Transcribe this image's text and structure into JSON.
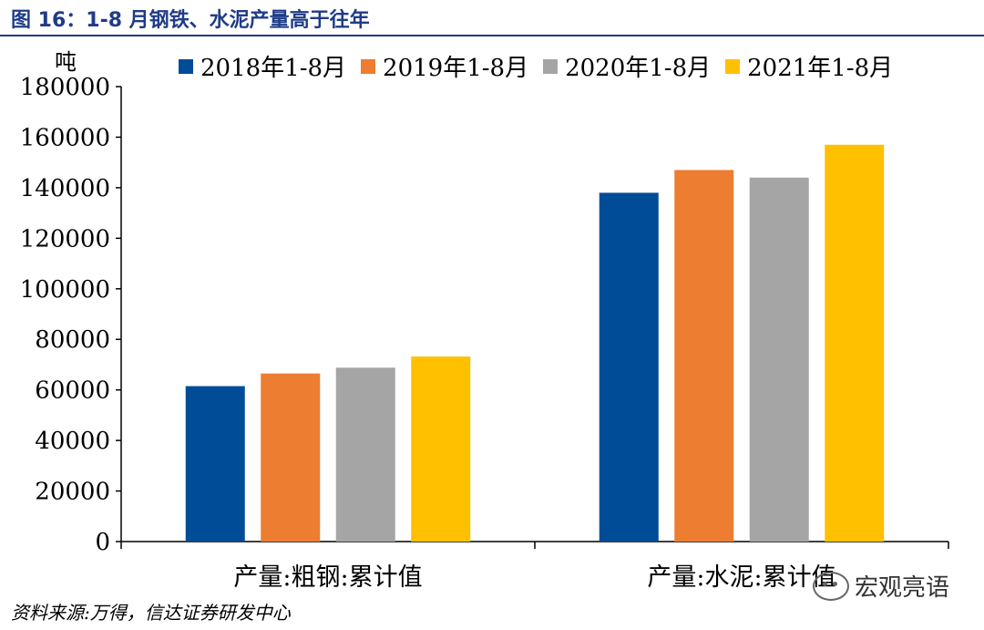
{
  "figure_title": "图 16：1-8 月钢铁、水泥产量高于往年",
  "source": "资料来源:万得，信达证券研发中心",
  "watermark": "宏观亮语",
  "chart_data": {
    "type": "bar",
    "ylabel": "吨",
    "ylim": [
      0,
      180000
    ],
    "yticks": [
      0,
      20000,
      40000,
      60000,
      80000,
      100000,
      120000,
      140000,
      160000,
      180000
    ],
    "categories": [
      "产量:粗钢:累计值",
      "产量:水泥:累计值"
    ],
    "legend_position": "top",
    "series": [
      {
        "name": "2018年1-8月",
        "color": "#004c97",
        "values": [
          61500,
          138000
        ]
      },
      {
        "name": "2019年1-8月",
        "color": "#ed7d31",
        "values": [
          66500,
          147000
        ]
      },
      {
        "name": "2020年1-8月",
        "color": "#a5a5a5",
        "values": [
          68800,
          144000
        ]
      },
      {
        "name": "2021年1-8月",
        "color": "#ffc000",
        "values": [
          73200,
          157000
        ]
      }
    ]
  }
}
